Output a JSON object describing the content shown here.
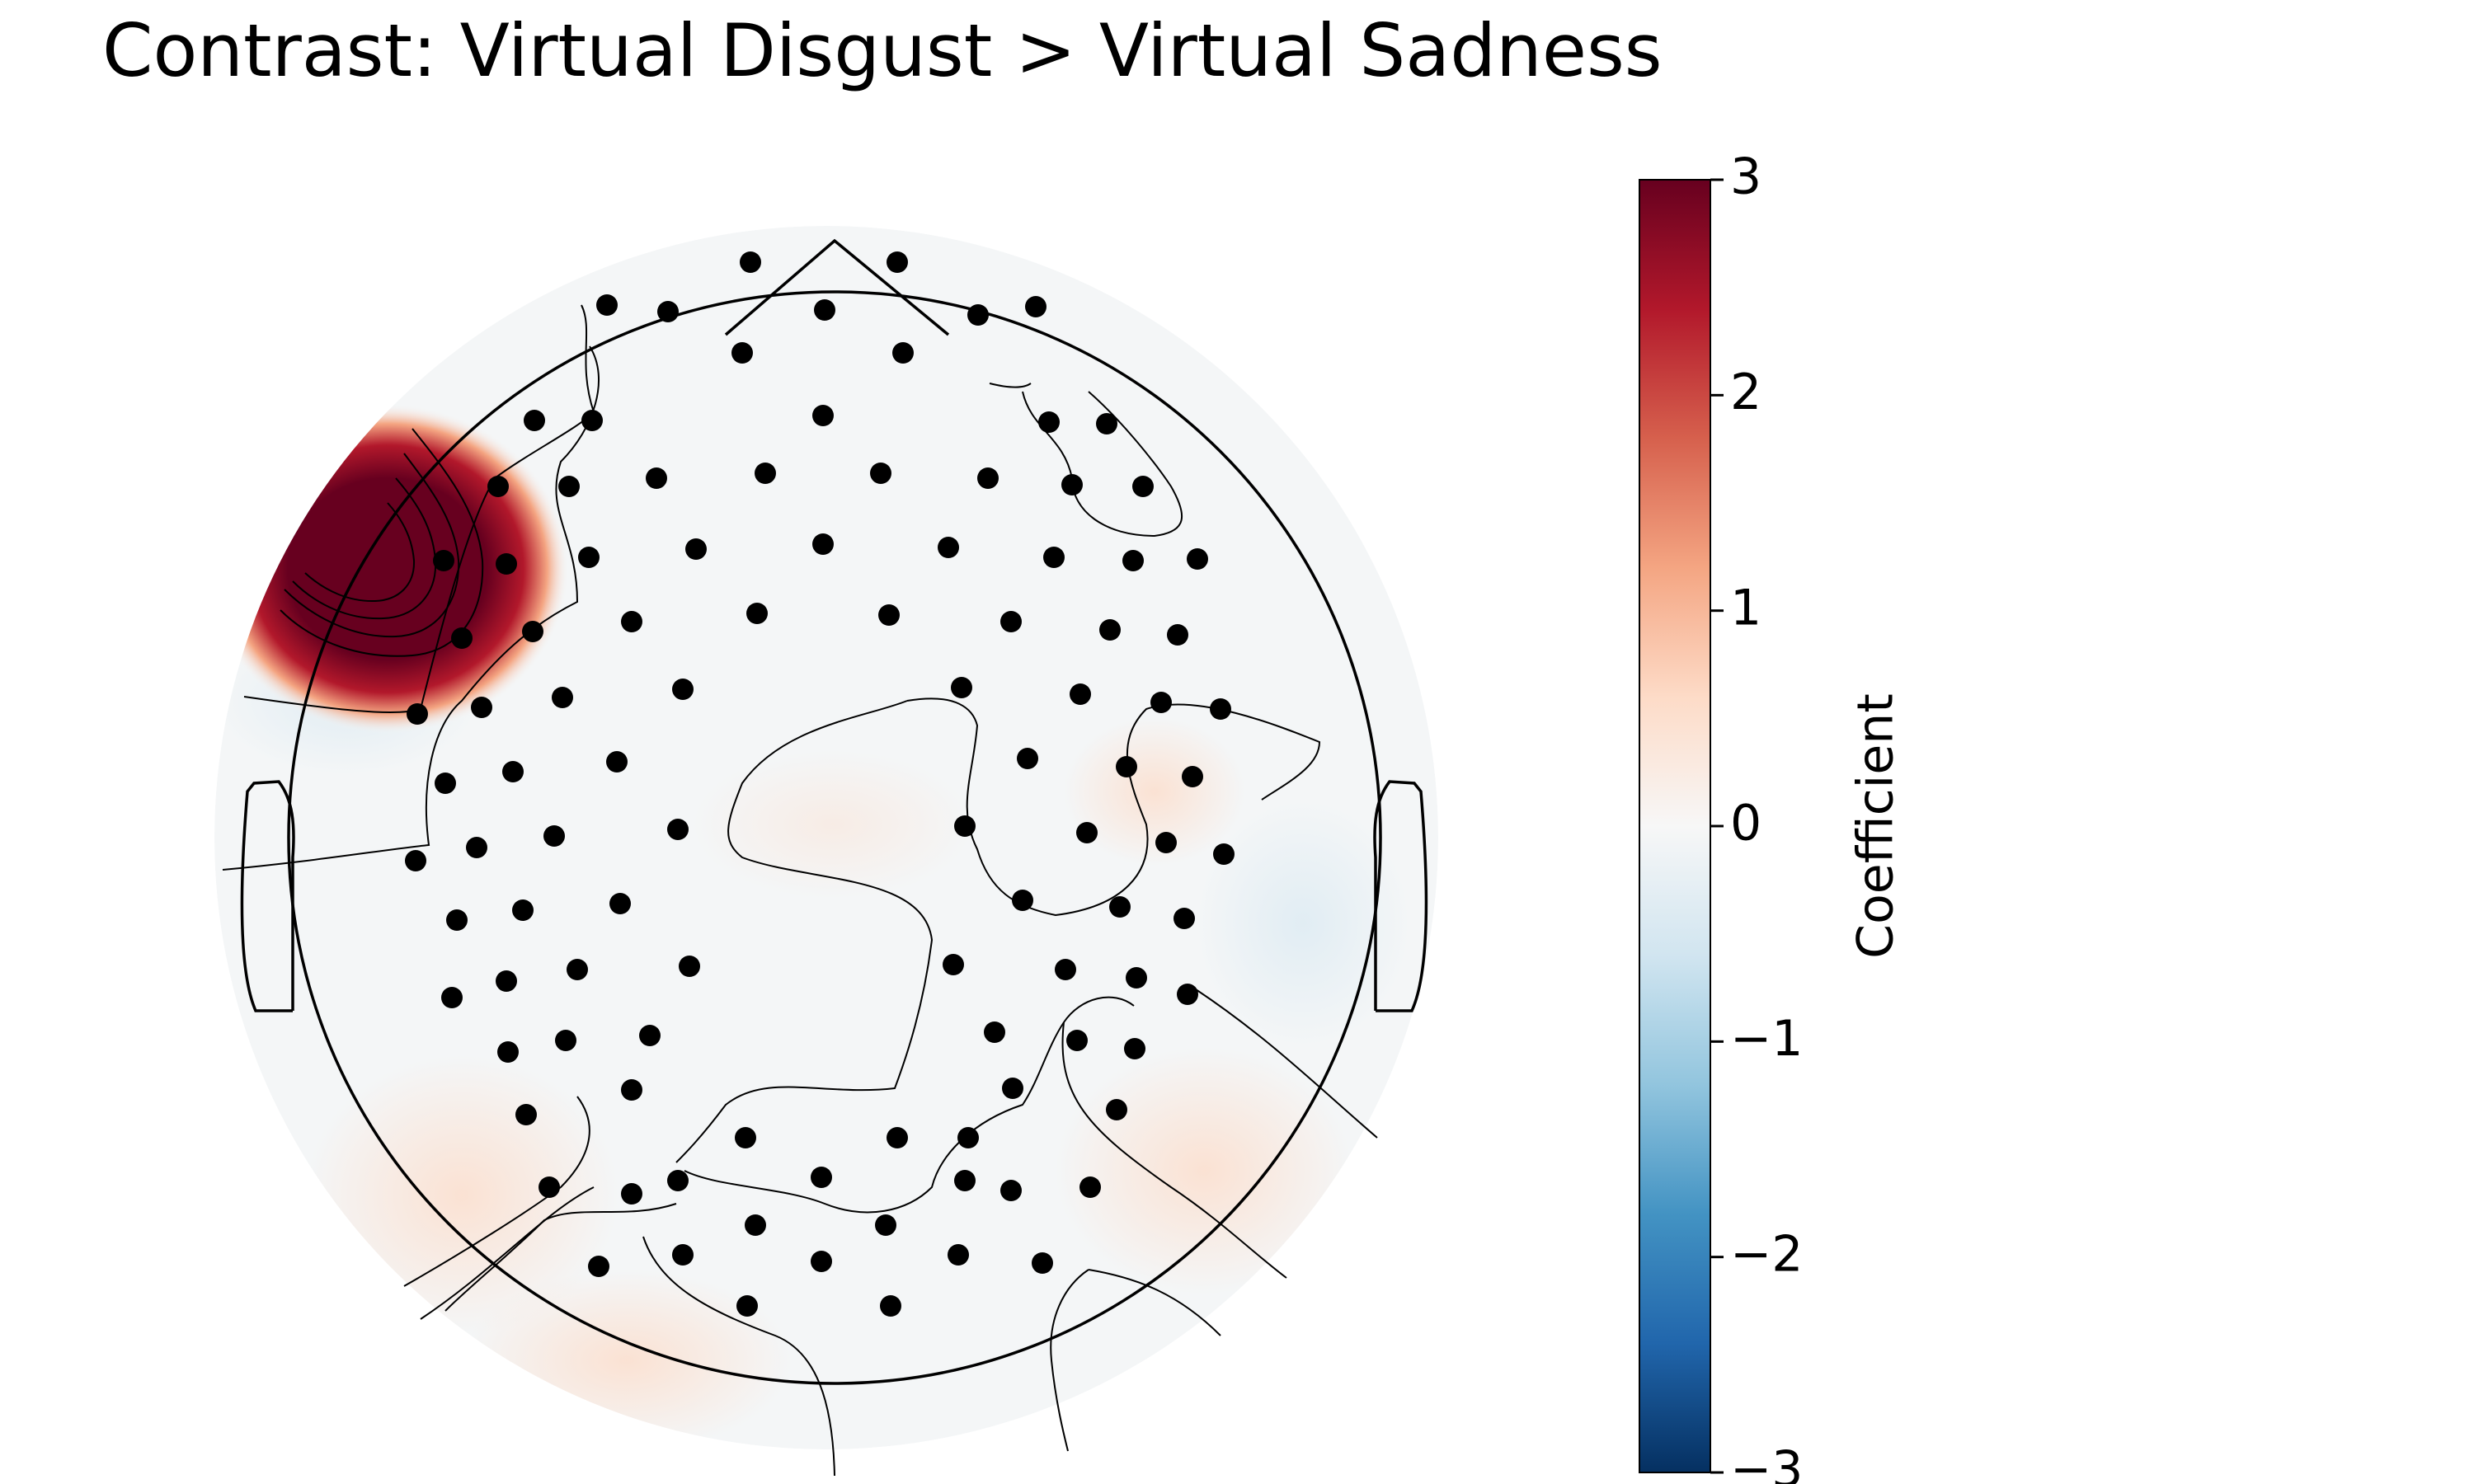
{
  "chart_data": {
    "type": "heatmap",
    "subtype": "eeg-topomap",
    "title": "Contrast: Virtual Disgust > Virtual Sadness",
    "colorbar": {
      "label": "Coefficient",
      "range": [
        -3,
        3
      ],
      "ticks": [
        3,
        2,
        1,
        0,
        -1,
        -2,
        -3
      ],
      "tick_labels": [
        "3",
        "2",
        "1",
        "0",
        "−1",
        "−2",
        "−3"
      ],
      "colormap": "RdBu_r",
      "color_stops": [
        "#053061",
        "#2166ac",
        "#4393c3",
        "#92c5de",
        "#d1e5f0",
        "#f7f7f7",
        "#fddbc7",
        "#f4a582",
        "#d6604d",
        "#b2182b",
        "#67001f"
      ]
    },
    "peak": {
      "sign": "positive",
      "region": "left frontal",
      "value_at_peak": 3.0
    },
    "value_range_elsewhere": [
      -0.3,
      0.3
    ],
    "n_sensors": 119,
    "colors": {
      "background": "#ffffff",
      "outline": "#000000",
      "contour": "#000000",
      "sensor": "#000000"
    }
  }
}
